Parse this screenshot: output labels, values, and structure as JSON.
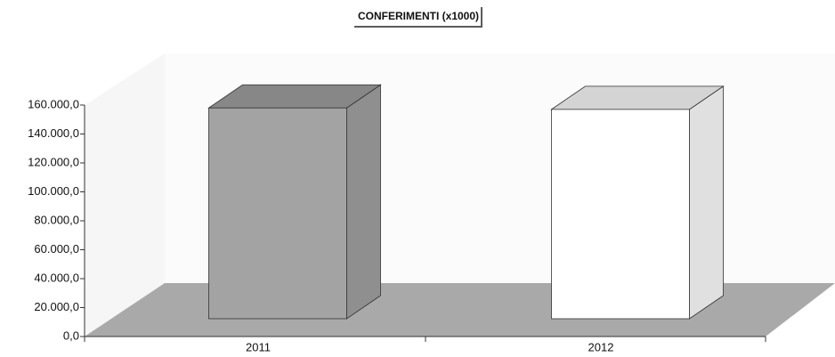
{
  "chart_data": {
    "type": "bar3d",
    "title": "CONFERIMENTI (x1000)",
    "categories": [
      "2011",
      "2012"
    ],
    "values": [
      158000,
      157000
    ],
    "colors": [
      "#a3a3a3",
      "#ffffff"
    ],
    "ylim": [
      0,
      160000
    ],
    "yticks": [
      {
        "value": 0,
        "label": "0,0"
      },
      {
        "value": 20000,
        "label": "20.000,0"
      },
      {
        "value": 40000,
        "label": "40.000,0"
      },
      {
        "value": 60000,
        "label": "60.000,0"
      },
      {
        "value": 80000,
        "label": "80.000,0"
      },
      {
        "value": 100000,
        "label": "100.000,0"
      },
      {
        "value": 120000,
        "label": "120.000,0"
      },
      {
        "value": 140000,
        "label": "140.000,0"
      },
      {
        "value": 160000,
        "label": "160.000,0"
      }
    ]
  }
}
